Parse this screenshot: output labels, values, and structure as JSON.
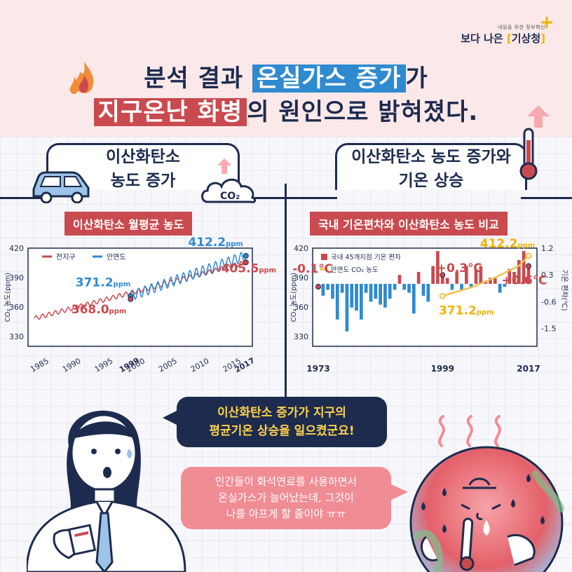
{
  "brand": {
    "small": "내일을 위한 정부혁신",
    "main": "보다 나은",
    "name": "기상청"
  },
  "headline": {
    "line1_pre": "분석 결과 ",
    "line1_hl": "온실가스 증가",
    "line1_post": "가",
    "line2_hl": "지구온난 화병",
    "line2_post": "의 원인으로 밝혀졌다."
  },
  "left_panel": {
    "title_line1": "이산화탄소",
    "title_line2": "농도 증가",
    "cloud_label": "CO₂",
    "sub_title": "이산화탄소 월평균 농도"
  },
  "right_panel": {
    "title_line1": "이산화탄소 농도 증가와",
    "title_line2": "기온 상승",
    "sub_title": "국내 기온편차와 이산화탄소 농도 비교"
  },
  "speech": {
    "dark_line1": "이산화탄소 증가가 지구의",
    "dark_line2": "평균기온 상승을 일으켰군요!",
    "pink_line1": "인간들이 화석연료를 사용하면서",
    "pink_line2": "온실가스가 늘어났는데, 그것이",
    "pink_line3": "나를 아프게 할 줄이야 ㅠㅠ"
  },
  "chart_data": [
    {
      "type": "line",
      "title": "이산화탄소 월평균 농도",
      "ylabel": "CO₂ 농도(ppm)",
      "ylim": [
        320,
        420
      ],
      "yticks": [
        330,
        360,
        390,
        420
      ],
      "xticks": [
        "1985",
        "1990",
        "1995",
        "1999",
        "2000",
        "2005",
        "2010",
        "2015",
        "2017"
      ],
      "xlim": [
        1983,
        2018
      ],
      "legend": "top-left",
      "colors": {
        "global": "#c94a4f",
        "anmyeondo": "#2f8ad0"
      },
      "series": [
        {
          "name": "전지구",
          "start_year": 1984,
          "end_year": 2017,
          "start_value": 348.5,
          "end_value": 405.5
        },
        {
          "name": "안면도",
          "start_year": 1999,
          "end_year": 2017,
          "start_value": 371.2,
          "end_value": 412.2
        }
      ],
      "annotations": [
        {
          "text": "371.2",
          "unit": "ppm",
          "x": 1999,
          "y": 371.2,
          "series": "안면도"
        },
        {
          "text": "412.2",
          "unit": "ppm",
          "x": 2017,
          "y": 412.2,
          "series": "안면도"
        },
        {
          "text": "368.0",
          "unit": "ppm",
          "x": 1999,
          "y": 368.0,
          "series": "전지구"
        },
        {
          "text": "405.5",
          "unit": "ppm",
          "x": 2017,
          "y": 405.5,
          "series": "전지구"
        }
      ]
    },
    {
      "type": "bar",
      "title": "국내 기온편차와 이산화탄소 농도 비교",
      "ylabel_left": "CO₂ 농도(ppm)",
      "ylabel_right": "기온 편차(℃)",
      "ylim_left": [
        320,
        420
      ],
      "yticks_left": [
        330,
        360,
        390,
        420
      ],
      "ylim_right": [
        -2.1,
        1.2
      ],
      "yticks_right": [
        "1.2",
        "0.3",
        "-0.6",
        "-1.5"
      ],
      "xticks": [
        "1973",
        "1999",
        "2017"
      ],
      "legend": "top-left",
      "colors": {
        "positive": "#c94a4f",
        "negative": "#2f8ad0",
        "co2": "#f0c24a"
      },
      "series": [
        {
          "name": "국내 45개지점 기온 편차",
          "start_year": 1973,
          "values": [
            -0.1,
            -0.4,
            -0.2,
            -0.5,
            -1.2,
            -0.3,
            -1.6,
            -0.8,
            -0.9,
            -1.2,
            -0.3,
            -0.6,
            -0.5,
            -0.7,
            -0.8,
            -0.5,
            -0.2,
            0.3,
            -0.2,
            -0.3,
            -1.0,
            0.4,
            -0.4,
            -0.6,
            0.6,
            1.1,
            0.3,
            0.2,
            -0.2,
            0.4,
            -0.2,
            0.6,
            -0.1,
            0.5,
            0.6,
            0.1,
            0.2,
            0.2,
            -0.3,
            -0.1,
            0.5,
            0.4,
            0.8,
            1.1,
            0.6
          ]
        },
        {
          "name": "안면도 CO₂ 농도",
          "x": [
            1999,
            2005,
            2010,
            2015,
            2017
          ],
          "values": [
            371.2,
            380,
            390,
            402,
            412.2
          ]
        }
      ],
      "annotations": [
        {
          "text": "-0.1℃",
          "x": 1973,
          "y": -0.1
        },
        {
          "text": "+0.3℃",
          "x": 1999,
          "y": 0.3
        },
        {
          "text": "+0.6℃",
          "x": 2017,
          "y": 0.6
        },
        {
          "text": "371.2",
          "unit": "ppm",
          "x": 1999,
          "y": 371.2
        },
        {
          "text": "412.2",
          "unit": "ppm",
          "x": 2017,
          "y": 412.2
        }
      ]
    }
  ]
}
